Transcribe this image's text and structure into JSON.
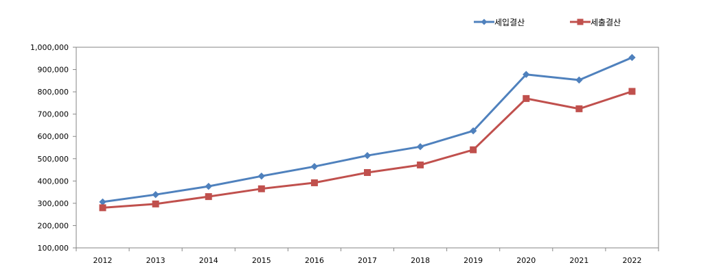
{
  "chart_data": {
    "type": "line",
    "title": "",
    "xlabel": "",
    "ylabel": "",
    "categories": [
      "2012",
      "2013",
      "2014",
      "2015",
      "2016",
      "2017",
      "2018",
      "2019",
      "2020",
      "2021",
      "2022"
    ],
    "ylim": [
      100000,
      1000000
    ],
    "ytick_values": [
      100000,
      200000,
      300000,
      400000,
      500000,
      600000,
      700000,
      800000,
      900000,
      1000000
    ],
    "ytick_labels": [
      "100,000",
      "200,000",
      "300,000",
      "400,000",
      "500,000",
      "600,000",
      "700,000",
      "800,000",
      "900,000",
      "1,000,000"
    ],
    "grid": false,
    "legend_position": "top-right",
    "series": [
      {
        "name": "세입결산",
        "color": "#4F81BD",
        "marker": "diamond",
        "values": [
          306000,
          339000,
          376000,
          422000,
          465000,
          514000,
          554000,
          625000,
          878000,
          853000,
          954000
        ]
      },
      {
        "name": "세출결산",
        "color": "#C0504D",
        "marker": "square",
        "values": [
          280000,
          297000,
          330000,
          365000,
          392000,
          438000,
          472000,
          540000,
          770000,
          724000,
          802000
        ]
      }
    ]
  }
}
